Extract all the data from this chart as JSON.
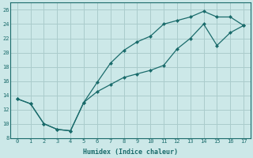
{
  "xlabel": "Humidex (Indice chaleur)",
  "bg_color": "#cce8e8",
  "grid_color": "#aacccc",
  "line_color": "#1a6b6b",
  "xlim": [
    -0.5,
    17.5
  ],
  "ylim": [
    8,
    27
  ],
  "xticks": [
    0,
    1,
    2,
    3,
    4,
    5,
    6,
    7,
    8,
    9,
    10,
    11,
    12,
    13,
    14,
    15,
    16,
    17
  ],
  "yticks": [
    8,
    10,
    12,
    14,
    16,
    18,
    20,
    22,
    24,
    26
  ],
  "upper_x": [
    0,
    1,
    2,
    3,
    4,
    5,
    6,
    7,
    8,
    9,
    10,
    11,
    12,
    13,
    14,
    15,
    16,
    17
  ],
  "upper_y": [
    13.5,
    12.8,
    10.0,
    9.2,
    9.0,
    13.0,
    15.8,
    18.5,
    20.3,
    21.5,
    22.3,
    24.0,
    24.5,
    25.0,
    25.8,
    25.0,
    25.0,
    23.8
  ],
  "lower_x": [
    0,
    1,
    2,
    3,
    4,
    5,
    6,
    7,
    8,
    9,
    10,
    11,
    12,
    13,
    14,
    15,
    16,
    17
  ],
  "lower_y": [
    13.5,
    12.8,
    10.0,
    9.2,
    9.0,
    13.0,
    14.5,
    15.5,
    16.5,
    17.0,
    17.5,
    18.2,
    20.5,
    22.0,
    24.0,
    21.0,
    22.8,
    23.8
  ],
  "xlabel_fontsize": 6,
  "tick_fontsize": 5,
  "marker_size": 2.5,
  "linewidth": 0.9
}
